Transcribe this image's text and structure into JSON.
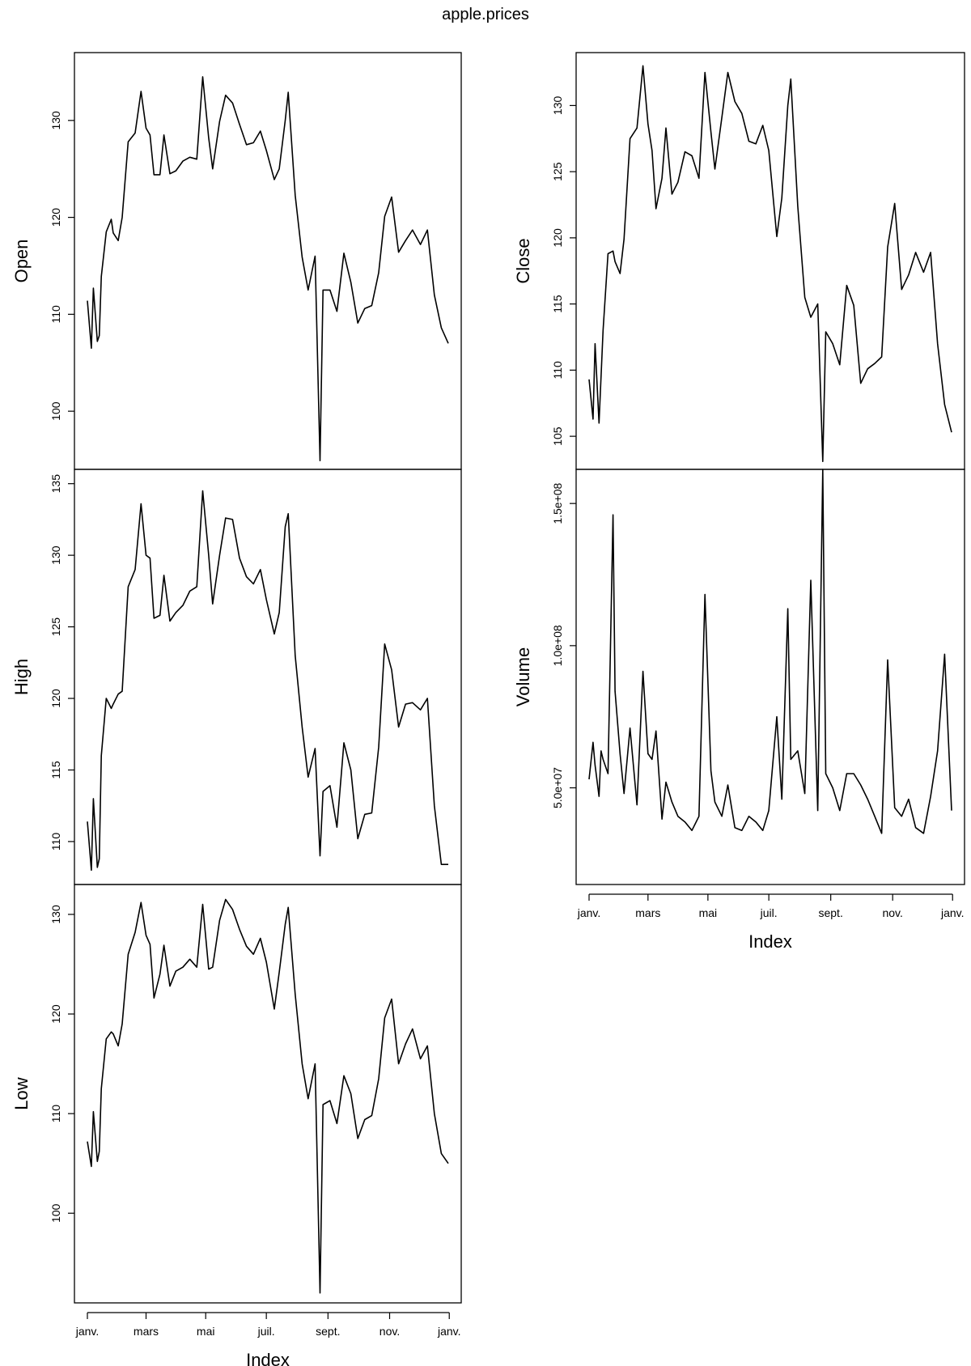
{
  "chart_data": {
    "type": "line",
    "title": "apple.prices",
    "xlabel": "Index",
    "x_tick_labels": [
      "janv.",
      "mars",
      "mai",
      "juil.",
      "sept.",
      "nov.",
      "janv."
    ],
    "x_tick_dates": [
      "2015-01-02",
      "2015-03-02",
      "2015-05-01",
      "2015-07-01",
      "2015-09-01",
      "2015-11-02",
      "2016-01-01"
    ],
    "x_range": [
      "2015-01-02",
      "2015-12-31"
    ],
    "grid": false,
    "legend": "none",
    "panels": [
      {
        "ylabel": "Open",
        "y_ticks": [
          100,
          110,
          120,
          130
        ],
        "ylim": [
          94,
          137
        ],
        "series": [
          {
            "x": [
              "2015-01-02",
              "2015-01-06",
              "2015-01-08",
              "2015-01-12",
              "2015-01-14",
              "2015-01-16",
              "2015-01-21",
              "2015-01-26",
              "2015-01-28",
              "2015-02-02",
              "2015-02-06",
              "2015-02-12",
              "2015-02-19",
              "2015-02-25",
              "2015-03-02",
              "2015-03-06",
              "2015-03-10",
              "2015-03-16",
              "2015-03-20",
              "2015-03-26",
              "2015-04-01",
              "2015-04-08",
              "2015-04-15",
              "2015-04-22",
              "2015-04-28",
              "2015-05-04",
              "2015-05-08",
              "2015-05-15",
              "2015-05-21",
              "2015-05-28",
              "2015-06-04",
              "2015-06-11",
              "2015-06-18",
              "2015-06-25",
              "2015-07-01",
              "2015-07-09",
              "2015-07-14",
              "2015-07-20",
              "2015-07-23",
              "2015-07-30",
              "2015-08-06",
              "2015-08-12",
              "2015-08-19",
              "2015-08-24",
              "2015-08-27",
              "2015-09-03",
              "2015-09-10",
              "2015-09-17",
              "2015-09-24",
              "2015-10-01",
              "2015-10-08",
              "2015-10-15",
              "2015-10-22",
              "2015-10-28",
              "2015-11-04",
              "2015-11-11",
              "2015-11-18",
              "2015-11-25",
              "2015-12-03",
              "2015-12-10",
              "2015-12-17",
              "2015-12-24",
              "2015-12-31"
            ],
            "y": [
              111.4,
              106.5,
              112.7,
              107.2,
              107.8,
              113.9,
              118.5,
              119.8,
              118.4,
              117.6,
              120.0,
              127.8,
              128.7,
              133.0,
              129.2,
              128.5,
              124.4,
              124.4,
              128.5,
              124.5,
              124.8,
              125.8,
              126.2,
              126.0,
              134.5,
              128.2,
              125.0,
              129.9,
              132.6,
              131.8,
              129.6,
              127.5,
              127.7,
              128.9,
              126.9,
              123.9,
              125.0,
              130.0,
              132.9,
              122.3,
              115.9,
              112.5,
              116.0,
              94.9,
              112.5,
              112.5,
              110.3,
              116.3,
              113.3,
              109.1,
              110.6,
              110.9,
              114.3,
              120.1,
              122.1,
              116.4,
              117.6,
              118.7,
              117.2,
              118.7,
              112.0,
              108.6,
              107.0
            ]
          }
        ]
      },
      {
        "ylabel": "High",
        "y_ticks": [
          110,
          115,
          120,
          125,
          130,
          135
        ],
        "ylim": [
          107,
          136
        ],
        "series": [
          {
            "x": [
              "2015-01-02",
              "2015-01-06",
              "2015-01-08",
              "2015-01-12",
              "2015-01-14",
              "2015-01-16",
              "2015-01-21",
              "2015-01-26",
              "2015-01-28",
              "2015-02-02",
              "2015-02-06",
              "2015-02-12",
              "2015-02-19",
              "2015-02-25",
              "2015-03-02",
              "2015-03-06",
              "2015-03-10",
              "2015-03-16",
              "2015-03-20",
              "2015-03-26",
              "2015-04-01",
              "2015-04-08",
              "2015-04-15",
              "2015-04-22",
              "2015-04-28",
              "2015-05-04",
              "2015-05-08",
              "2015-05-15",
              "2015-05-21",
              "2015-05-28",
              "2015-06-04",
              "2015-06-11",
              "2015-06-18",
              "2015-06-25",
              "2015-07-01",
              "2015-07-09",
              "2015-07-14",
              "2015-07-20",
              "2015-07-23",
              "2015-07-30",
              "2015-08-06",
              "2015-08-12",
              "2015-08-19",
              "2015-08-24",
              "2015-08-27",
              "2015-09-03",
              "2015-09-10",
              "2015-09-17",
              "2015-09-24",
              "2015-10-01",
              "2015-10-08",
              "2015-10-15",
              "2015-10-22",
              "2015-10-28",
              "2015-11-04",
              "2015-11-11",
              "2015-11-18",
              "2015-11-25",
              "2015-12-03",
              "2015-12-10",
              "2015-12-17",
              "2015-12-24",
              "2015-12-31"
            ],
            "y": [
              111.4,
              108.0,
              113.0,
              108.2,
              108.8,
              116.0,
              120.0,
              119.3,
              119.6,
              120.3,
              120.5,
              127.8,
              129.0,
              133.6,
              130.0,
              129.8,
              125.6,
              125.8,
              128.6,
              125.4,
              126.0,
              126.5,
              127.5,
              127.8,
              134.5,
              130.0,
              126.6,
              130.0,
              132.6,
              132.5,
              129.8,
              128.5,
              128.0,
              129.0,
              126.9,
              124.5,
              126.0,
              132.0,
              132.9,
              123.0,
              118.0,
              114.5,
              116.5,
              109.0,
              113.5,
              113.9,
              111.0,
              116.9,
              115.0,
              110.2,
              111.9,
              112.0,
              116.6,
              123.8,
              122.0,
              118.0,
              119.6,
              119.7,
              119.2,
              120.0,
              112.5,
              108.4,
              108.4
            ]
          }
        ]
      },
      {
        "ylabel": "Low",
        "y_ticks": [
          100,
          110,
          120,
          130
        ],
        "ylim": [
          91,
          133
        ],
        "series": [
          {
            "x": [
              "2015-01-02",
              "2015-01-06",
              "2015-01-08",
              "2015-01-12",
              "2015-01-14",
              "2015-01-16",
              "2015-01-21",
              "2015-01-26",
              "2015-01-28",
              "2015-02-02",
              "2015-02-06",
              "2015-02-12",
              "2015-02-19",
              "2015-02-25",
              "2015-03-02",
              "2015-03-06",
              "2015-03-10",
              "2015-03-16",
              "2015-03-20",
              "2015-03-26",
              "2015-04-01",
              "2015-04-08",
              "2015-04-15",
              "2015-04-22",
              "2015-04-28",
              "2015-05-04",
              "2015-05-08",
              "2015-05-15",
              "2015-05-21",
              "2015-05-28",
              "2015-06-04",
              "2015-06-11",
              "2015-06-18",
              "2015-06-25",
              "2015-07-01",
              "2015-07-09",
              "2015-07-14",
              "2015-07-20",
              "2015-07-23",
              "2015-07-30",
              "2015-08-06",
              "2015-08-12",
              "2015-08-19",
              "2015-08-24",
              "2015-08-27",
              "2015-09-03",
              "2015-09-10",
              "2015-09-17",
              "2015-09-24",
              "2015-10-01",
              "2015-10-08",
              "2015-10-15",
              "2015-10-22",
              "2015-10-28",
              "2015-11-04",
              "2015-11-11",
              "2015-11-18",
              "2015-11-25",
              "2015-12-03",
              "2015-12-10",
              "2015-12-17",
              "2015-12-24",
              "2015-12-31"
            ],
            "y": [
              107.2,
              104.7,
              110.2,
              105.2,
              106.2,
              112.5,
              117.5,
              118.2,
              118.0,
              116.8,
              119.0,
              126.0,
              128.2,
              131.2,
              127.9,
              127.0,
              121.6,
              124.0,
              126.9,
              122.8,
              124.3,
              124.7,
              125.5,
              124.7,
              131.0,
              124.5,
              124.7,
              129.4,
              131.5,
              130.5,
              128.5,
              126.8,
              126.0,
              127.6,
              125.2,
              120.5,
              124.2,
              129.0,
              130.7,
              122.0,
              115.0,
              111.5,
              115.0,
              92.0,
              110.9,
              111.3,
              109.0,
              113.8,
              112.0,
              107.5,
              109.4,
              109.8,
              113.5,
              119.6,
              121.5,
              115.0,
              117.0,
              118.5,
              115.5,
              116.8,
              110.0,
              106.0,
              105.0
            ]
          }
        ]
      },
      {
        "ylabel": "Close",
        "y_ticks": [
          105,
          110,
          115,
          120,
          125,
          130
        ],
        "ylim": [
          102.5,
          134
        ],
        "series": [
          {
            "x": [
              "2015-01-02",
              "2015-01-06",
              "2015-01-08",
              "2015-01-12",
              "2015-01-14",
              "2015-01-16",
              "2015-01-21",
              "2015-01-26",
              "2015-01-28",
              "2015-02-02",
              "2015-02-06",
              "2015-02-12",
              "2015-02-19",
              "2015-02-25",
              "2015-03-02",
              "2015-03-06",
              "2015-03-10",
              "2015-03-16",
              "2015-03-20",
              "2015-03-26",
              "2015-04-01",
              "2015-04-08",
              "2015-04-15",
              "2015-04-22",
              "2015-04-28",
              "2015-05-04",
              "2015-05-08",
              "2015-05-15",
              "2015-05-21",
              "2015-05-28",
              "2015-06-04",
              "2015-06-11",
              "2015-06-18",
              "2015-06-25",
              "2015-07-01",
              "2015-07-09",
              "2015-07-14",
              "2015-07-20",
              "2015-07-23",
              "2015-07-30",
              "2015-08-06",
              "2015-08-12",
              "2015-08-19",
              "2015-08-24",
              "2015-08-27",
              "2015-09-03",
              "2015-09-10",
              "2015-09-17",
              "2015-09-24",
              "2015-10-01",
              "2015-10-08",
              "2015-10-15",
              "2015-10-22",
              "2015-10-28",
              "2015-11-04",
              "2015-11-11",
              "2015-11-18",
              "2015-11-25",
              "2015-12-03",
              "2015-12-10",
              "2015-12-17",
              "2015-12-24",
              "2015-12-31"
            ],
            "y": [
              109.3,
              106.3,
              112.0,
              106.0,
              109.5,
              113.0,
              118.8,
              119.0,
              118.2,
              117.3,
              119.9,
              127.5,
              128.3,
              133.0,
              128.6,
              126.6,
              122.2,
              124.5,
              128.3,
              123.3,
              124.2,
              126.5,
              126.2,
              124.5,
              132.5,
              128.0,
              125.2,
              129.1,
              132.5,
              130.3,
              129.4,
              127.3,
              127.1,
              128.5,
              126.6,
              120.1,
              123.0,
              130.0,
              132.0,
              122.4,
              115.5,
              114.0,
              115.0,
              103.1,
              112.9,
              112.0,
              110.4,
              116.4,
              114.9,
              109.0,
              110.1,
              110.5,
              111.0,
              119.3,
              122.6,
              116.1,
              117.2,
              118.9,
              117.4,
              118.9,
              112.0,
              107.4,
              105.3
            ]
          }
        ]
      },
      {
        "ylabel": "Volume",
        "y_ticks": [
          50000000,
          100000000,
          150000000
        ],
        "y_tick_labels": [
          "5.0e+07",
          "1.0e+08",
          "1.5e+08"
        ],
        "ylim": [
          16000000,
          162000000
        ],
        "series": [
          {
            "x": [
              "2015-01-02",
              "2015-01-06",
              "2015-01-08",
              "2015-01-12",
              "2015-01-14",
              "2015-01-16",
              "2015-01-21",
              "2015-01-26",
              "2015-01-28",
              "2015-02-02",
              "2015-02-06",
              "2015-02-12",
              "2015-02-19",
              "2015-02-25",
              "2015-03-02",
              "2015-03-06",
              "2015-03-10",
              "2015-03-16",
              "2015-03-20",
              "2015-03-26",
              "2015-04-01",
              "2015-04-08",
              "2015-04-15",
              "2015-04-22",
              "2015-04-28",
              "2015-05-04",
              "2015-05-08",
              "2015-05-15",
              "2015-05-21",
              "2015-05-28",
              "2015-06-04",
              "2015-06-11",
              "2015-06-18",
              "2015-06-25",
              "2015-07-01",
              "2015-07-09",
              "2015-07-14",
              "2015-07-20",
              "2015-07-23",
              "2015-07-30",
              "2015-08-06",
              "2015-08-12",
              "2015-08-19",
              "2015-08-24",
              "2015-08-27",
              "2015-09-03",
              "2015-09-10",
              "2015-09-17",
              "2015-09-24",
              "2015-10-01",
              "2015-10-08",
              "2015-10-15",
              "2015-10-22",
              "2015-10-28",
              "2015-11-04",
              "2015-11-11",
              "2015-11-18",
              "2015-11-25",
              "2015-12-03",
              "2015-12-10",
              "2015-12-17",
              "2015-12-24",
              "2015-12-31"
            ],
            "y": [
              53000000,
              66000000,
              58000000,
              47000000,
              63000000,
              60000000,
              55000000,
              146000000,
              84000000,
              62000000,
              48000000,
              71000000,
              44000000,
              91000000,
              62000000,
              60000000,
              70000000,
              39000000,
              52000000,
              45000000,
              40000000,
              38000000,
              35000000,
              40000000,
              118000000,
              56000000,
              45000000,
              40000000,
              51000000,
              36000000,
              35000000,
              40000000,
              38000000,
              35000000,
              42000000,
              75000000,
              46000000,
              113000000,
              60000000,
              63000000,
              48000000,
              123000000,
              42000000,
              162000000,
              55000000,
              50000000,
              42000000,
              55000000,
              55000000,
              51000000,
              46000000,
              40000000,
              34000000,
              95000000,
              43000000,
              40000000,
              46000000,
              36000000,
              34000000,
              47000000,
              63000000,
              97000000,
              42000000
            ]
          }
        ]
      }
    ]
  }
}
